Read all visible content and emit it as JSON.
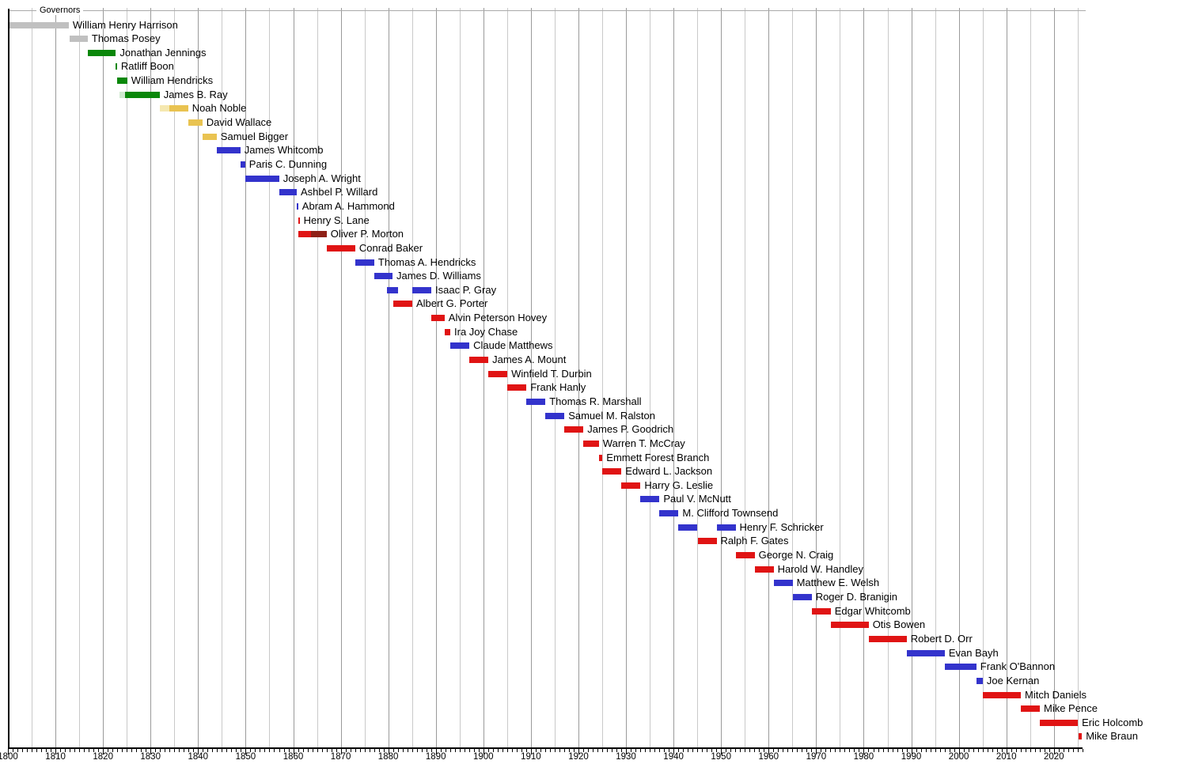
{
  "chart_data": {
    "type": "gantt",
    "title": "Governors",
    "description": "Timeline of the Governors of Indiana, 1800-2025, colored by party",
    "axis": {
      "min_year": 1800,
      "max_year": 2026,
      "minor_tick_step": 1,
      "label_step": 10,
      "grid_step": 5,
      "decade_labels": [
        1800,
        1810,
        1820,
        1830,
        1840,
        1850,
        1860,
        1870,
        1880,
        1890,
        1900,
        1910,
        1920,
        1930,
        1940,
        1950,
        1960,
        1970,
        1980,
        1990,
        2000,
        2010,
        2020
      ]
    },
    "colors": {
      "territorial": "#c0c0c0",
      "demrep": "#0a870a",
      "demrep_light": "#cfe9cf",
      "natrep": "#f5e8b0",
      "whig": "#e9c351",
      "dem": "#3333cc",
      "rep": "#e01414",
      "natunion": "#8e2016",
      "grid_minor": "#c9c9c9",
      "grid_decade": "#9a9a9a",
      "axis": "#000000",
      "top_rule": "#aaaaaa"
    },
    "governors": [
      {
        "name": "William Henry Harrison",
        "terms": [
          {
            "from": 1800.3,
            "to": 1812.8,
            "party": "territorial"
          }
        ]
      },
      {
        "name": "Thomas Posey",
        "terms": [
          {
            "from": 1813.0,
            "to": 1816.8,
            "party": "territorial"
          }
        ]
      },
      {
        "name": "Jonathan Jennings",
        "terms": [
          {
            "from": 1816.8,
            "to": 1822.7,
            "party": "demrep"
          }
        ]
      },
      {
        "name": "Ratliff Boon",
        "terms": [
          {
            "from": 1822.7,
            "to": 1822.95,
            "party": "demrep"
          }
        ]
      },
      {
        "name": "William Hendricks",
        "terms": [
          {
            "from": 1822.95,
            "to": 1825.1,
            "party": "demrep"
          }
        ]
      },
      {
        "name": "James B. Ray",
        "terms": [
          {
            "from": 1823.5,
            "to": 1824.6,
            "party": "demrep_light"
          },
          {
            "from": 1824.6,
            "to": 1831.9,
            "party": "demrep"
          }
        ]
      },
      {
        "name": "Noah Noble",
        "terms": [
          {
            "from": 1831.9,
            "to": 1834.0,
            "party": "natrep"
          },
          {
            "from": 1834.0,
            "to": 1837.9,
            "party": "whig"
          }
        ]
      },
      {
        "name": "David Wallace",
        "terms": [
          {
            "from": 1837.9,
            "to": 1840.9,
            "party": "whig"
          }
        ]
      },
      {
        "name": "Samuel Bigger",
        "terms": [
          {
            "from": 1840.9,
            "to": 1843.9,
            "party": "whig"
          }
        ]
      },
      {
        "name": "James Whitcomb",
        "terms": [
          {
            "from": 1843.9,
            "to": 1848.9,
            "party": "dem"
          }
        ]
      },
      {
        "name": "Paris C. Dunning",
        "terms": [
          {
            "from": 1848.9,
            "to": 1849.9,
            "party": "dem"
          }
        ]
      },
      {
        "name": "Joseph A. Wright",
        "terms": [
          {
            "from": 1849.9,
            "to": 1857.05,
            "party": "dem"
          }
        ]
      },
      {
        "name": "Ashbel P. Willard",
        "terms": [
          {
            "from": 1857.05,
            "to": 1860.75,
            "party": "dem"
          }
        ]
      },
      {
        "name": "Abram A. Hammond",
        "terms": [
          {
            "from": 1860.75,
            "to": 1861.05,
            "party": "dem"
          }
        ]
      },
      {
        "name": "Henry S. Lane",
        "terms": [
          {
            "from": 1861.05,
            "to": 1861.35,
            "party": "rep"
          }
        ]
      },
      {
        "name": "Oliver P. Morton",
        "terms": [
          {
            "from": 1861.1,
            "to": 1863.8,
            "party": "rep"
          },
          {
            "from": 1863.8,
            "to": 1867.05,
            "party": "natunion"
          }
        ]
      },
      {
        "name": "Conrad Baker",
        "terms": [
          {
            "from": 1867.05,
            "to": 1873.05,
            "party": "rep"
          }
        ]
      },
      {
        "name": "Thomas A. Hendricks",
        "terms": [
          {
            "from": 1873.05,
            "to": 1877.05,
            "party": "dem"
          }
        ]
      },
      {
        "name": "James D. Williams",
        "terms": [
          {
            "from": 1877.05,
            "to": 1880.9,
            "party": "dem"
          }
        ]
      },
      {
        "name": "Isaac P. Gray",
        "terms": [
          {
            "from": 1879.7,
            "to": 1882.0,
            "party": "dem"
          },
          {
            "from": 1885.05,
            "to": 1889.05,
            "party": "dem"
          }
        ]
      },
      {
        "name": "Albert G. Porter",
        "terms": [
          {
            "from": 1881.05,
            "to": 1885.05,
            "party": "rep"
          }
        ]
      },
      {
        "name": "Alvin Peterson Hovey",
        "terms": [
          {
            "from": 1889.05,
            "to": 1891.85,
            "party": "rep"
          }
        ]
      },
      {
        "name": "Ira Joy Chase",
        "terms": [
          {
            "from": 1891.85,
            "to": 1893.05,
            "party": "rep"
          }
        ]
      },
      {
        "name": "Claude Matthews",
        "terms": [
          {
            "from": 1893.05,
            "to": 1897.05,
            "party": "dem"
          }
        ]
      },
      {
        "name": "James A. Mount",
        "terms": [
          {
            "from": 1897.05,
            "to": 1901.05,
            "party": "rep"
          }
        ]
      },
      {
        "name": "Winfield T. Durbin",
        "terms": [
          {
            "from": 1901.05,
            "to": 1905.05,
            "party": "rep"
          }
        ]
      },
      {
        "name": "Frank Hanly",
        "terms": [
          {
            "from": 1905.05,
            "to": 1909.05,
            "party": "rep"
          }
        ]
      },
      {
        "name": "Thomas R. Marshall",
        "terms": [
          {
            "from": 1909.05,
            "to": 1913.05,
            "party": "dem"
          }
        ]
      },
      {
        "name": "Samuel M. Ralston",
        "terms": [
          {
            "from": 1913.05,
            "to": 1917.05,
            "party": "dem"
          }
        ]
      },
      {
        "name": "James P. Goodrich",
        "terms": [
          {
            "from": 1917.05,
            "to": 1921.05,
            "party": "rep"
          }
        ]
      },
      {
        "name": "Warren T. McCray",
        "terms": [
          {
            "from": 1921.05,
            "to": 1924.3,
            "party": "rep"
          }
        ]
      },
      {
        "name": "Emmett Forest Branch",
        "terms": [
          {
            "from": 1924.3,
            "to": 1925.05,
            "party": "rep"
          }
        ]
      },
      {
        "name": "Edward L. Jackson",
        "terms": [
          {
            "from": 1925.05,
            "to": 1929.05,
            "party": "rep"
          }
        ]
      },
      {
        "name": "Harry G. Leslie",
        "terms": [
          {
            "from": 1929.05,
            "to": 1933.05,
            "party": "rep"
          }
        ]
      },
      {
        "name": "Paul V. McNutt",
        "terms": [
          {
            "from": 1933.05,
            "to": 1937.05,
            "party": "dem"
          }
        ]
      },
      {
        "name": "M. Clifford Townsend",
        "terms": [
          {
            "from": 1937.05,
            "to": 1941.05,
            "party": "dem"
          }
        ]
      },
      {
        "name": "Henry F. Schricker",
        "terms": [
          {
            "from": 1941.05,
            "to": 1945.05,
            "party": "dem"
          },
          {
            "from": 1949.05,
            "to": 1953.05,
            "party": "dem"
          }
        ]
      },
      {
        "name": "Ralph F. Gates",
        "terms": [
          {
            "from": 1945.05,
            "to": 1949.05,
            "party": "rep"
          }
        ]
      },
      {
        "name": "George N. Craig",
        "terms": [
          {
            "from": 1953.05,
            "to": 1957.05,
            "party": "rep"
          }
        ]
      },
      {
        "name": "Harold W. Handley",
        "terms": [
          {
            "from": 1957.05,
            "to": 1961.05,
            "party": "rep"
          }
        ]
      },
      {
        "name": "Matthew E. Welsh",
        "terms": [
          {
            "from": 1961.05,
            "to": 1965.05,
            "party": "dem"
          }
        ]
      },
      {
        "name": "Roger D. Branigin",
        "terms": [
          {
            "from": 1965.05,
            "to": 1969.05,
            "party": "dem"
          }
        ]
      },
      {
        "name": "Edgar Whitcomb",
        "terms": [
          {
            "from": 1969.05,
            "to": 1973.05,
            "party": "rep"
          }
        ]
      },
      {
        "name": "Otis Bowen",
        "terms": [
          {
            "from": 1973.05,
            "to": 1981.05,
            "party": "rep"
          }
        ]
      },
      {
        "name": "Robert D. Orr",
        "terms": [
          {
            "from": 1981.05,
            "to": 1989.05,
            "party": "rep"
          }
        ]
      },
      {
        "name": "Evan Bayh",
        "terms": [
          {
            "from": 1989.05,
            "to": 1997.05,
            "party": "dem"
          }
        ]
      },
      {
        "name": "Frank O'Bannon",
        "terms": [
          {
            "from": 1997.05,
            "to": 2003.7,
            "party": "dem"
          }
        ]
      },
      {
        "name": "Joe Kernan",
        "terms": [
          {
            "from": 2003.7,
            "to": 2005.05,
            "party": "dem"
          }
        ]
      },
      {
        "name": "Mitch Daniels",
        "terms": [
          {
            "from": 2005.05,
            "to": 2013.05,
            "party": "rep"
          }
        ]
      },
      {
        "name": "Mike Pence",
        "terms": [
          {
            "from": 2013.05,
            "to": 2017.05,
            "party": "rep"
          }
        ]
      },
      {
        "name": "Eric Holcomb",
        "terms": [
          {
            "from": 2017.05,
            "to": 2025.05,
            "party": "rep"
          }
        ]
      },
      {
        "name": "Mike Braun",
        "terms": [
          {
            "from": 2025.2,
            "to": 2025.9,
            "party": "rep"
          }
        ]
      }
    ]
  }
}
